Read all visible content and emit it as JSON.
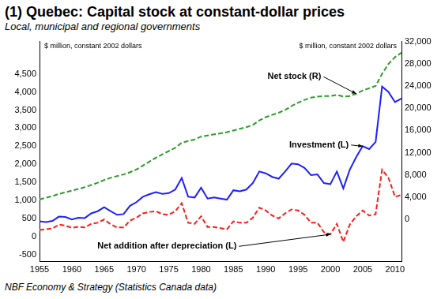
{
  "chart_data": {
    "type": "line",
    "title": "(1) Quebec: Capital stock at constant-dollar prices",
    "subtitle": "Local, municipal and regional governments",
    "y_label": "$ million, constant 2002 dollars",
    "y2_label": "$ million, constant 2002 dollars",
    "source": "NBF Economy & Strategy (Statistics Canada data)",
    "grid": false,
    "x": [
      1955,
      1956,
      1957,
      1958,
      1959,
      1960,
      1961,
      1962,
      1963,
      1964,
      1965,
      1966,
      1967,
      1968,
      1969,
      1970,
      1971,
      1972,
      1973,
      1974,
      1975,
      1976,
      1977,
      1978,
      1979,
      1980,
      1981,
      1982,
      1983,
      1984,
      1985,
      1986,
      1987,
      1988,
      1989,
      1990,
      1991,
      1992,
      1993,
      1994,
      1995,
      1996,
      1997,
      1998,
      1999,
      2000,
      2001,
      2002,
      2003,
      2004,
      2005,
      2006,
      2007,
      2008,
      2009,
      2010,
      2011
    ],
    "xlim": [
      1955,
      2011
    ],
    "xticks": [
      1955,
      1960,
      1965,
      1970,
      1975,
      1980,
      1985,
      1990,
      1995,
      2000,
      2005,
      2010
    ],
    "ylim": [
      -700,
      5400
    ],
    "yticks": [
      -500,
      0,
      500,
      {
        "value": 1000,
        "label": "1,000"
      },
      {
        "value": 1500,
        "label": "1,500"
      },
      {
        "value": 2000,
        "label": "2,000"
      },
      {
        "value": 2500,
        "label": "2,500"
      },
      {
        "value": 3000,
        "label": "3,000"
      },
      {
        "value": 3500,
        "label": "3,500"
      },
      {
        "value": 4000,
        "label": "4,000"
      },
      {
        "value": 4500,
        "label": "4,500"
      }
    ],
    "y2lim": [
      -7600,
      32000
    ],
    "y2ticks": [
      0,
      {
        "value": 4000,
        "label": "4,000"
      },
      {
        "value": 8000,
        "label": "8,000"
      },
      {
        "value": 12000,
        "label": "12,000"
      },
      {
        "value": 16000,
        "label": "16,000"
      },
      {
        "value": 20000,
        "label": "20,000"
      },
      {
        "value": 24000,
        "label": "24,000"
      },
      {
        "value": 28000,
        "label": "28,000"
      },
      {
        "value": 32000,
        "label": "32,000"
      }
    ],
    "series": [
      {
        "name": "Net stock (R)",
        "color": "#2e9b2e",
        "line_style": "dashed",
        "axis": "y2",
        "values": [
          3600,
          3900,
          4200,
          4600,
          4900,
          5200,
          5500,
          5800,
          6200,
          6600,
          7100,
          7500,
          7800,
          8100,
          8500,
          9000,
          9700,
          10400,
          11100,
          11700,
          12300,
          12900,
          13800,
          14100,
          14400,
          14900,
          15100,
          15300,
          15500,
          15700,
          16000,
          16300,
          16600,
          17000,
          17800,
          18400,
          18800,
          19200,
          19700,
          20400,
          21000,
          21500,
          21900,
          22100,
          22200,
          22200,
          22400,
          22100,
          22200,
          22600,
          23200,
          23600,
          24000,
          26200,
          28000,
          29200,
          30000
        ]
      },
      {
        "name": "Investment (L)",
        "color": "#1f1fff",
        "line_style": "solid",
        "axis": "y",
        "values": [
          420,
          400,
          430,
          550,
          540,
          470,
          520,
          510,
          640,
          700,
          810,
          700,
          600,
          620,
          850,
          950,
          1100,
          1170,
          1230,
          1180,
          1200,
          1300,
          1620,
          1100,
          1080,
          1350,
          1050,
          1080,
          1050,
          1020,
          1280,
          1250,
          1300,
          1480,
          1800,
          1750,
          1650,
          1600,
          1800,
          2020,
          2000,
          1900,
          1700,
          1720,
          1480,
          1450,
          1800,
          1330,
          1850,
          2200,
          2500,
          2420,
          2620,
          4150,
          4000,
          3720,
          3820
        ]
      },
      {
        "name": "Net addition after depreciation (L)",
        "color": "#ff1a1a",
        "line_style": "dashed",
        "axis": "y",
        "values": [
          180,
          200,
          220,
          330,
          300,
          240,
          270,
          250,
          350,
          380,
          470,
          340,
          250,
          250,
          440,
          520,
          640,
          680,
          700,
          620,
          600,
          700,
          920,
          380,
          350,
          560,
          260,
          260,
          230,
          200,
          420,
          380,
          380,
          520,
          800,
          720,
          580,
          500,
          640,
          750,
          720,
          600,
          380,
          380,
          120,
          60,
          350,
          -150,
          330,
          560,
          720,
          580,
          620,
          1850,
          1620,
          1100,
          1150
        ]
      }
    ]
  }
}
